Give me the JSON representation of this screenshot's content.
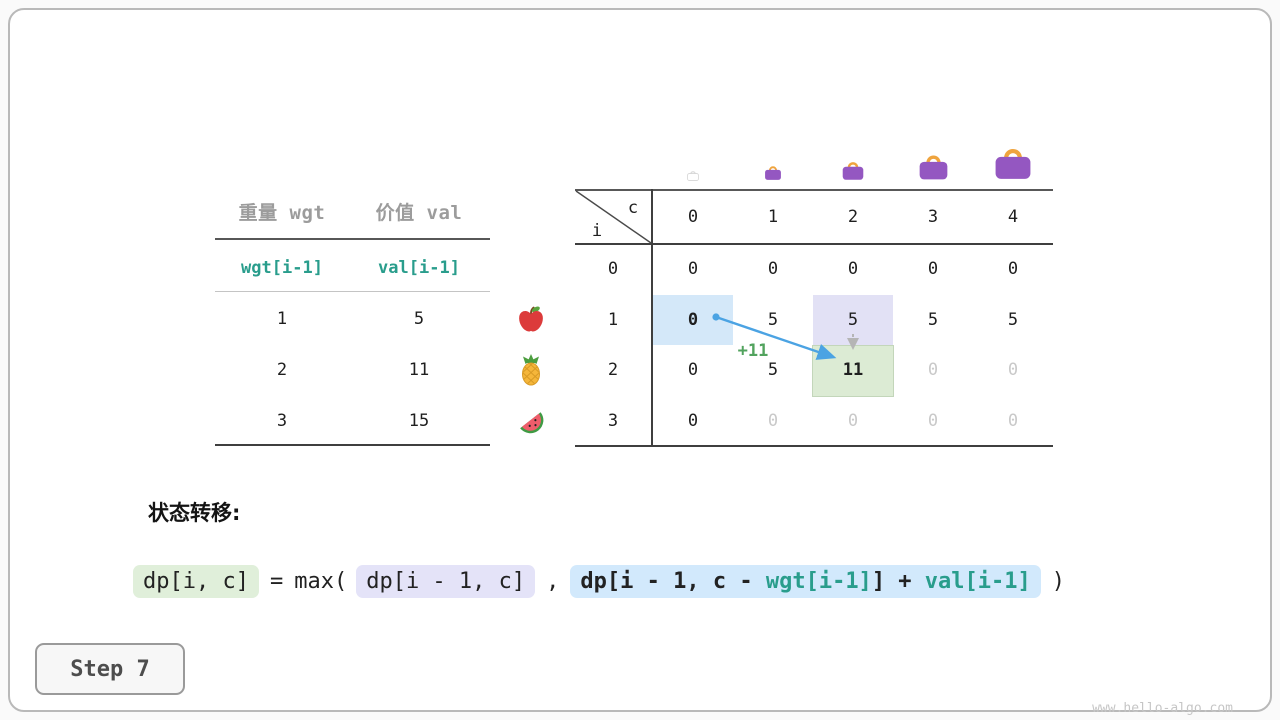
{
  "page": {
    "watermark": "www.hello-algo.com"
  },
  "step": {
    "label": "Step 7"
  },
  "section": {
    "state_transition_label": "状态转移:"
  },
  "items_table": {
    "col_headers": [
      "重量 wgt",
      "价值 val"
    ],
    "formula_row": [
      "wgt[i-1]",
      "val[i-1]"
    ],
    "rows": [
      {
        "wgt": "1",
        "val": "5",
        "icon": "apple-icon"
      },
      {
        "wgt": "2",
        "val": "11",
        "icon": "pineapple-icon"
      },
      {
        "wgt": "3",
        "val": "15",
        "icon": "watermelon-icon"
      }
    ]
  },
  "dp_table": {
    "corner": {
      "col_label": "c",
      "row_label": "i"
    },
    "col_headers": [
      "0",
      "1",
      "2",
      "3",
      "4"
    ],
    "row_headers": [
      "0",
      "1",
      "2",
      "3"
    ],
    "capacity_icons": [
      "bag-ghost-icon",
      "bag-icon-1",
      "bag-icon-2",
      "bag-icon-3",
      "bag-icon-4"
    ],
    "cells": [
      [
        "0",
        "0",
        "0",
        "0",
        "0"
      ],
      [
        "0",
        "5",
        "5",
        "5",
        "5"
      ],
      [
        "0",
        "5",
        "11",
        "0",
        "0"
      ],
      [
        "0",
        "0",
        "0",
        "0",
        "0"
      ]
    ],
    "cell_styles": {
      "bold": [
        [
          1,
          0
        ],
        [
          2,
          2
        ]
      ],
      "dim": [
        [
          2,
          3
        ],
        [
          2,
          4
        ],
        [
          3,
          1
        ],
        [
          3,
          2
        ],
        [
          3,
          3
        ],
        [
          3,
          4
        ]
      ],
      "highlights": [
        {
          "row": 1,
          "col": 0,
          "style": "blue"
        },
        {
          "row": 1,
          "col": 2,
          "style": "lavender"
        },
        {
          "row": 2,
          "col": 2,
          "style": "green"
        }
      ]
    },
    "arrow_label": "+11"
  },
  "formula": {
    "result": "dp[i, c]",
    "equals": "=",
    "max_open": "max(",
    "option_keep": "dp[i - 1, c]",
    "separator": ",",
    "option_take_parts": [
      {
        "text": "dp[i - 1, c - ",
        "accent": false
      },
      {
        "text": "wgt[i-1]",
        "accent": true
      },
      {
        "text": "] + ",
        "accent": false
      },
      {
        "text": "val[i-1]",
        "accent": true
      }
    ],
    "close_paren": ")"
  },
  "colors": {
    "accent_teal": "#299d8c",
    "plus_green": "#52a35e",
    "arrow_blue": "#4ba3e3",
    "arrow_gray": "#b5b5b5",
    "dim_text": "#c9c9c9",
    "highlight_blue": "#d4e8f9",
    "highlight_lavender": "#e2e1f5",
    "highlight_green": "#dcebd4",
    "pill_green": "#e0efda",
    "pill_lavender": "#e4e3f8",
    "pill_blue": "#d2e9fc",
    "bag_purple": "#9457c1",
    "bag_handle_orange": "#efa43e"
  }
}
